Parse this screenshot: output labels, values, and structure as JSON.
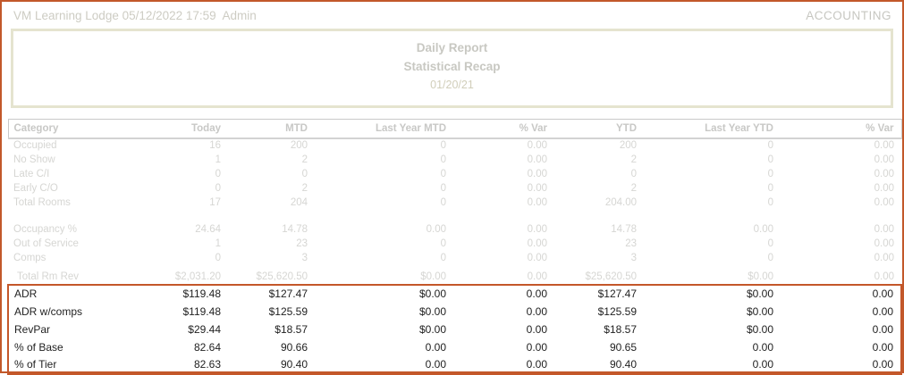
{
  "header": {
    "property_line": "VM Learning Lodge 05/12/2022 17:59  Admin",
    "module_label": "ACCOUNTING"
  },
  "title_box": {
    "line1": "Daily Report",
    "line2": "Statistical Recap",
    "date": "01/20/21"
  },
  "table": {
    "columns": [
      "Category",
      "Today",
      "MTD",
      "Last Year MTD",
      "% Var",
      "YTD",
      "Last Year YTD",
      "% Var"
    ],
    "rows": [
      {
        "category": "Occupied",
        "values": [
          "16",
          "200",
          "0",
          "0.00",
          "200",
          "0",
          "0.00"
        ]
      },
      {
        "category": "No Show",
        "values": [
          "1",
          "2",
          "0",
          "0.00",
          "2",
          "0",
          "0.00"
        ]
      },
      {
        "category": "Late C/I",
        "values": [
          "0",
          "0",
          "0",
          "0.00",
          "0",
          "0",
          "0.00"
        ]
      },
      {
        "category": "Early C/O",
        "values": [
          "0",
          "2",
          "0",
          "0.00",
          "2",
          "0",
          "0.00"
        ]
      },
      {
        "category": "Total Rooms",
        "values": [
          "17",
          "204",
          "0",
          "0.00",
          "204.00",
          "0",
          "0.00"
        ]
      },
      {
        "spacer": 14
      },
      {
        "category": "Occupancy %",
        "values": [
          "24.64",
          "14.78",
          "0.00",
          "0.00",
          "14.78",
          "0.00",
          "0.00"
        ]
      },
      {
        "category": "Out of Service",
        "values": [
          "1",
          "23",
          "0",
          "0.00",
          "23",
          "0",
          "0.00"
        ]
      },
      {
        "category": "Comps",
        "values": [
          "0",
          "3",
          "0",
          "0.00",
          "3",
          "0",
          "0.00"
        ]
      },
      {
        "spacer": 6
      },
      {
        "category": "Total Rm Rev",
        "indent": true,
        "values": [
          "$2,031.20",
          "$25,620.50",
          "$0.00",
          "0.00",
          "$25,620.50",
          "$0.00",
          "0.00"
        ]
      }
    ],
    "highlight_rows": [
      {
        "category": "ADR",
        "values": [
          "$119.48",
          "$127.47",
          "$0.00",
          "0.00",
          "$127.47",
          "$0.00",
          "0.00"
        ]
      },
      {
        "category": "ADR w/comps",
        "values": [
          "$119.48",
          "$125.59",
          "$0.00",
          "0.00",
          "$125.59",
          "$0.00",
          "0.00"
        ]
      },
      {
        "category": "RevPar",
        "values": [
          "$29.44",
          "$18.57",
          "$0.00",
          "0.00",
          "$18.57",
          "$0.00",
          "0.00"
        ]
      },
      {
        "category": "% of Base",
        "values": [
          "82.64",
          "90.66",
          "0.00",
          "0.00",
          "90.65",
          "0.00",
          "0.00"
        ]
      },
      {
        "category": "% of Tier",
        "values": [
          "82.63",
          "90.40",
          "0.00",
          "0.00",
          "90.40",
          "0.00",
          "0.00"
        ]
      }
    ]
  },
  "colors": {
    "accent_orange_border": "#c2582a",
    "highlight_box_border": "#c4572a",
    "title_box_border": "#e5e4cf",
    "muted_text": "#d6d6d3",
    "strong_text": "#222222"
  }
}
